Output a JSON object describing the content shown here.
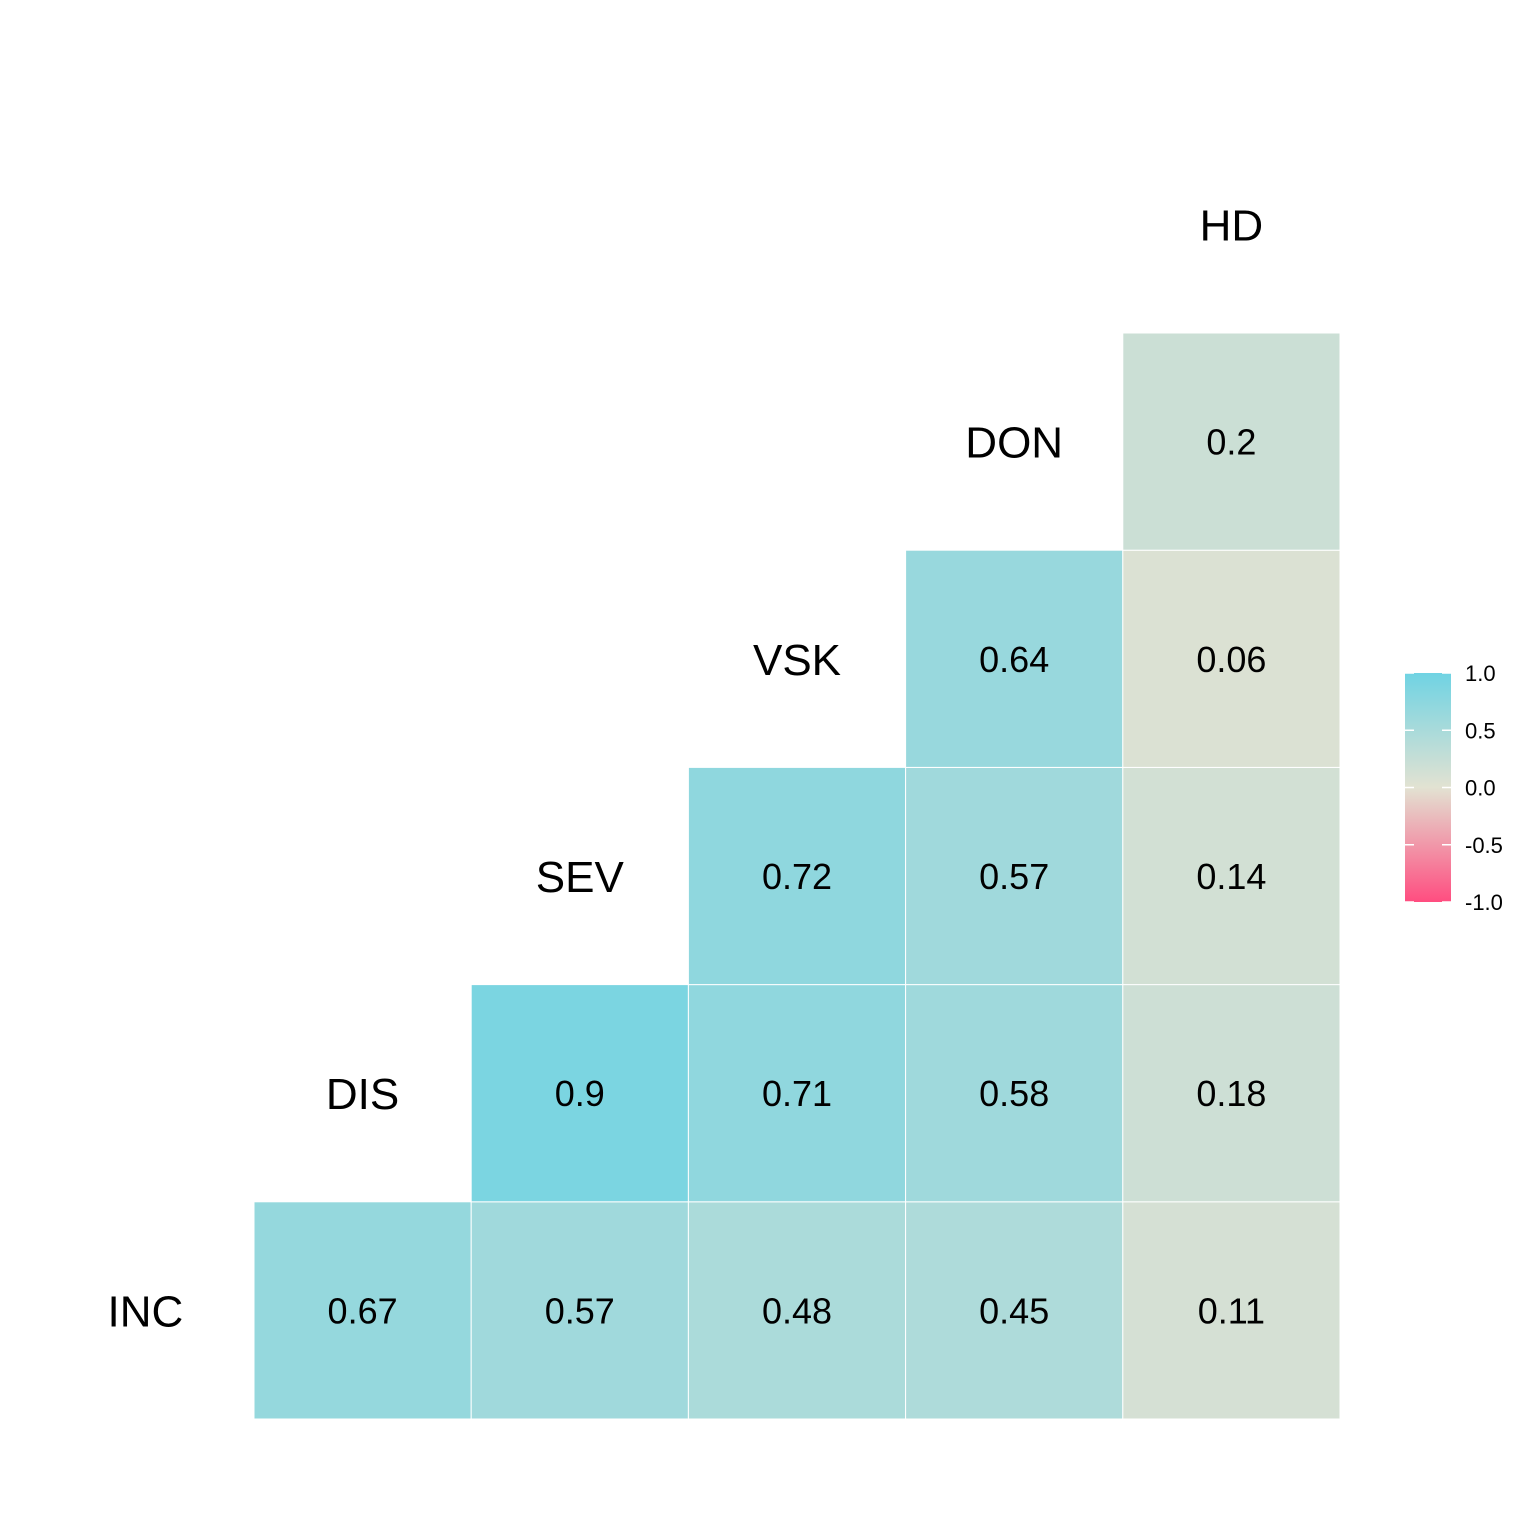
{
  "chart_data": {
    "type": "heatmap",
    "variables": [
      "INC",
      "DIS",
      "SEV",
      "VSK",
      "DON",
      "HD"
    ],
    "cells": [
      {
        "row": "INC",
        "col": "DIS",
        "value": 0.67,
        "label": "0.67"
      },
      {
        "row": "INC",
        "col": "SEV",
        "value": 0.57,
        "label": "0.57"
      },
      {
        "row": "INC",
        "col": "VSK",
        "value": 0.48,
        "label": "0.48"
      },
      {
        "row": "INC",
        "col": "DON",
        "value": 0.45,
        "label": "0.45"
      },
      {
        "row": "INC",
        "col": "HD",
        "value": 0.11,
        "label": "0.11"
      },
      {
        "row": "DIS",
        "col": "SEV",
        "value": 0.9,
        "label": "0.9"
      },
      {
        "row": "DIS",
        "col": "VSK",
        "value": 0.71,
        "label": "0.71"
      },
      {
        "row": "DIS",
        "col": "DON",
        "value": 0.58,
        "label": "0.58"
      },
      {
        "row": "DIS",
        "col": "HD",
        "value": 0.18,
        "label": "0.18"
      },
      {
        "row": "SEV",
        "col": "VSK",
        "value": 0.72,
        "label": "0.72"
      },
      {
        "row": "SEV",
        "col": "DON",
        "value": 0.57,
        "label": "0.57"
      },
      {
        "row": "SEV",
        "col": "HD",
        "value": 0.14,
        "label": "0.14"
      },
      {
        "row": "VSK",
        "col": "DON",
        "value": 0.64,
        "label": "0.64"
      },
      {
        "row": "VSK",
        "col": "HD",
        "value": 0.06,
        "label": "0.06"
      },
      {
        "row": "DON",
        "col": "HD",
        "value": 0.2,
        "label": "0.2"
      }
    ],
    "color_scale": {
      "range": [
        -1.0,
        1.0
      ],
      "low": "#ff4d80",
      "mid": "#e2e2d2",
      "high": "#6fd3e3",
      "ticks": [
        {
          "value": 1.0,
          "label": "1.0"
        },
        {
          "value": 0.5,
          "label": "0.5"
        },
        {
          "value": 0.0,
          "label": "0.0"
        },
        {
          "value": -0.5,
          "label": "-0.5"
        },
        {
          "value": -1.0,
          "label": "-1.0"
        }
      ]
    },
    "legend_position": "right"
  }
}
